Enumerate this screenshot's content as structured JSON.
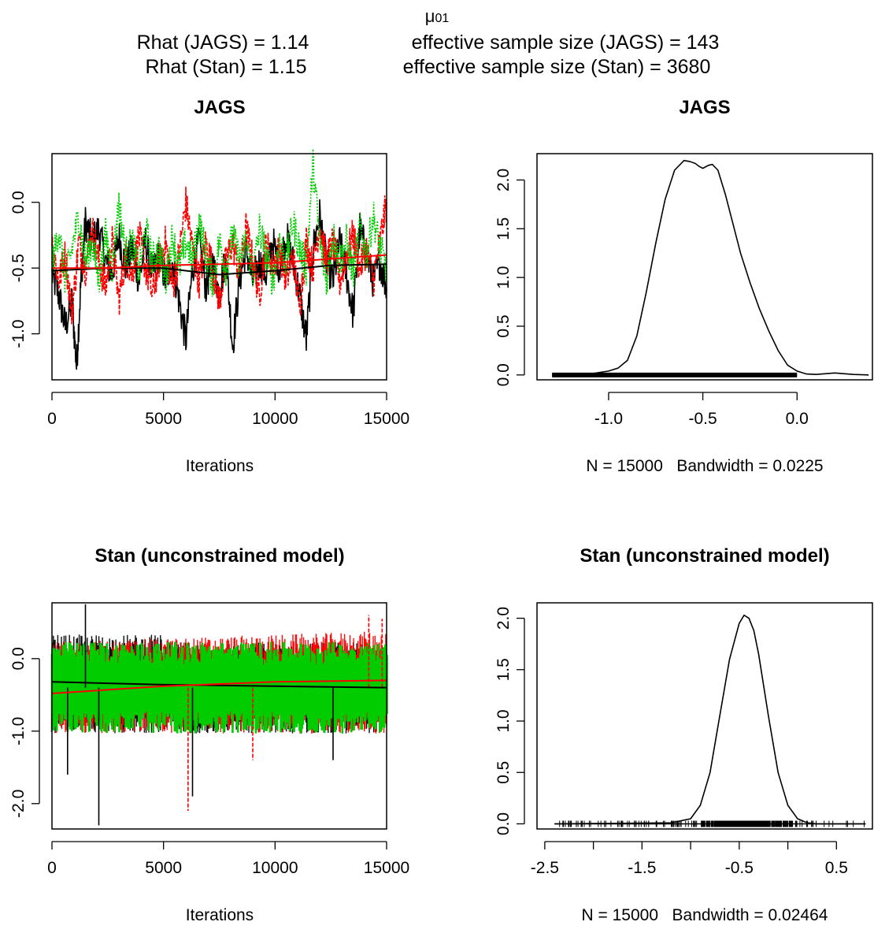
{
  "header": {
    "param_main": "μ",
    "param_sub": "01",
    "line1_left": "Rhat (JAGS) = 1.14",
    "line1_right": "effective sample size (JAGS) =  143",
    "line2_left": "Rhat (Stan) = 1.15",
    "line2_right": "effective sample size (Stan) =  3680"
  },
  "colors": {
    "chain1": "#000000",
    "chain2": "#ff0000",
    "chain3": "#00cc00",
    "axis": "#000000"
  },
  "chart_data": [
    {
      "id": "jags-trace",
      "type": "line",
      "title": "JAGS",
      "xlabel": "Iterations",
      "ylabel": "",
      "xlim": [
        0,
        15000
      ],
      "ylim": [
        -1.35,
        0.37
      ],
      "xticks": [
        0,
        5000,
        10000,
        15000
      ],
      "xtick_labels": [
        "0",
        "5000",
        "10000",
        "15000"
      ],
      "yticks": [
        0,
        -0.5,
        -1.0
      ],
      "ytick_labels": [
        "0.0",
        "-0.5",
        "-1.0"
      ],
      "series": [
        {
          "x": [
            0,
            300,
            600,
            900,
            1100,
            1300,
            1500,
            1800,
            2100,
            2400,
            2700,
            3000,
            3300,
            3600,
            3900,
            4200,
            4500,
            4800,
            5100,
            5400,
            5700,
            6000,
            6300,
            6600,
            6900,
            7200,
            7500,
            7800,
            8100,
            8400,
            8700,
            9000,
            9300,
            9600,
            9900,
            10200,
            10500,
            10800,
            11100,
            11400,
            11700,
            12000,
            12300,
            12600,
            12900,
            13200,
            13500,
            13800,
            14100,
            14400,
            14700,
            15000
          ],
          "y": [
            -0.55,
            -0.7,
            -0.95,
            -0.75,
            -1.25,
            -0.6,
            -0.15,
            -0.3,
            -0.2,
            -0.45,
            -0.55,
            -0.25,
            -0.5,
            -0.35,
            -0.6,
            -0.3,
            -0.55,
            -0.4,
            -0.6,
            -0.45,
            -0.75,
            -1.05,
            -0.5,
            -0.3,
            -0.65,
            -0.45,
            -0.7,
            -0.4,
            -1.1,
            -0.6,
            -0.35,
            -0.6,
            -0.45,
            -0.55,
            -0.3,
            -0.5,
            -0.25,
            -0.45,
            -0.7,
            -1.05,
            -0.35,
            -0.1,
            -0.45,
            -0.6,
            -0.3,
            -0.55,
            -0.85,
            -0.2,
            -0.4,
            -0.6,
            -0.45,
            -0.65
          ]
        },
        {
          "x": [
            0,
            300,
            600,
            900,
            1200,
            1500,
            1800,
            2100,
            2400,
            2700,
            3000,
            3300,
            3600,
            3900,
            4200,
            4500,
            4800,
            5100,
            5400,
            5700,
            6000,
            6300,
            6600,
            6900,
            7200,
            7500,
            7800,
            8100,
            8400,
            8700,
            9000,
            9300,
            9600,
            9900,
            10200,
            10500,
            10800,
            11100,
            11400,
            11700,
            12000,
            12300,
            12600,
            12900,
            13200,
            13500,
            13800,
            14100,
            14400,
            14700,
            15000
          ],
          "y": [
            -0.3,
            -0.6,
            -0.4,
            -0.85,
            -0.3,
            -0.5,
            -0.2,
            -0.45,
            -0.65,
            -0.3,
            -0.75,
            -0.4,
            -0.55,
            -0.25,
            -0.5,
            -0.7,
            -0.45,
            -0.3,
            -0.65,
            -0.4,
            0.0,
            -0.35,
            -0.6,
            -0.3,
            -0.5,
            -0.75,
            -0.45,
            -0.3,
            -0.55,
            -0.2,
            -0.45,
            -0.7,
            -0.3,
            -0.5,
            -0.35,
            -0.6,
            -0.4,
            -0.8,
            -0.3,
            -0.5,
            -0.15,
            -0.45,
            -0.3,
            -0.6,
            -0.4,
            -0.25,
            -0.5,
            -0.35,
            -0.6,
            -0.3,
            0.0
          ]
        },
        {
          "x": [
            0,
            300,
            600,
            900,
            1200,
            1500,
            1800,
            2100,
            2400,
            2700,
            3000,
            3300,
            3600,
            3900,
            4200,
            4500,
            4800,
            5100,
            5400,
            5700,
            6000,
            6300,
            6600,
            6900,
            7200,
            7500,
            7800,
            8100,
            8400,
            8700,
            9000,
            9300,
            9600,
            9900,
            10200,
            10500,
            10800,
            11100,
            11400,
            11700,
            12000,
            12300,
            12600,
            12900,
            13200,
            13500,
            13800,
            14100,
            14400,
            14700,
            15000
          ],
          "y": [
            -0.5,
            -0.2,
            -0.6,
            -0.35,
            -0.1,
            -0.45,
            -0.3,
            -0.6,
            -0.25,
            -0.5,
            0.0,
            -0.4,
            -0.3,
            -0.55,
            -0.2,
            -0.45,
            -0.35,
            -0.6,
            -0.25,
            -0.5,
            -0.3,
            -0.45,
            -0.15,
            -0.4,
            -0.6,
            -0.3,
            -0.5,
            -0.25,
            -0.45,
            -0.3,
            -0.55,
            -0.2,
            -0.4,
            -0.6,
            -0.3,
            -0.45,
            -0.15,
            -0.35,
            -0.5,
            0.3,
            -0.3,
            -0.6,
            -0.25,
            -0.45,
            -0.3,
            -0.55,
            -0.2,
            -0.4,
            -0.1,
            -0.35,
            -0.5
          ]
        }
      ],
      "smooth": [
        {
          "x": [
            0,
            2500,
            5000,
            7500,
            10000,
            12500,
            15000
          ],
          "y": [
            -0.52,
            -0.5,
            -0.5,
            -0.55,
            -0.52,
            -0.48,
            -0.47
          ]
        },
        {
          "x": [
            0,
            2500,
            5000,
            7500,
            10000,
            12500,
            15000
          ],
          "y": [
            -0.5,
            -0.5,
            -0.48,
            -0.47,
            -0.46,
            -0.43,
            -0.4
          ]
        }
      ]
    },
    {
      "id": "jags-density",
      "type": "line",
      "title": "JAGS",
      "xlabel": "N = 15000   Bandwidth = 0.0225",
      "ylabel": "",
      "xlim": [
        -1.38,
        0.4
      ],
      "ylim": [
        -0.05,
        2.27
      ],
      "xticks": [
        -1.0,
        -0.5,
        0.0
      ],
      "xtick_labels": [
        "-1.0",
        "-0.5",
        "0.0"
      ],
      "yticks": [
        0,
        0.5,
        1.0,
        1.5,
        2.0
      ],
      "ytick_labels": [
        "0.0",
        "0.5",
        "1.0",
        "1.5",
        "2.0"
      ],
      "x": [
        -1.3,
        -1.1,
        -1.0,
        -0.95,
        -0.9,
        -0.85,
        -0.8,
        -0.75,
        -0.7,
        -0.65,
        -0.6,
        -0.57,
        -0.54,
        -0.52,
        -0.5,
        -0.47,
        -0.45,
        -0.42,
        -0.38,
        -0.34,
        -0.3,
        -0.25,
        -0.2,
        -0.15,
        -0.1,
        -0.05,
        0.0,
        0.05,
        0.1,
        0.2,
        0.3,
        0.38
      ],
      "y": [
        0.0,
        0.01,
        0.04,
        0.07,
        0.15,
        0.4,
        0.85,
        1.35,
        1.8,
        2.1,
        2.2,
        2.19,
        2.17,
        2.14,
        2.12,
        2.15,
        2.16,
        2.1,
        1.85,
        1.55,
        1.25,
        0.95,
        0.68,
        0.45,
        0.25,
        0.1,
        0.04,
        0.01,
        0.005,
        0.02,
        0.005,
        0.0
      ],
      "rug_range": [
        -1.3,
        0.0
      ]
    },
    {
      "id": "stan-trace",
      "type": "line",
      "title": "Stan (unconstrained model)",
      "xlabel": "Iterations",
      "ylabel": "",
      "xlim": [
        0,
        15000
      ],
      "ylim": [
        -2.35,
        0.77
      ],
      "xticks": [
        0,
        5000,
        10000,
        15000
      ],
      "xtick_labels": [
        "0",
        "5000",
        "10000",
        "15000"
      ],
      "yticks": [
        0,
        -1.0,
        -2.0
      ],
      "ytick_labels": [
        "0.0",
        "-1.0",
        "-2.0"
      ],
      "band_center": -0.4,
      "band_half_width": 0.55,
      "spikes": [
        {
          "x": 1500,
          "y": 0.75,
          "chain": 0
        },
        {
          "x": 2100,
          "y": -2.3,
          "chain": 0
        },
        {
          "x": 6100,
          "y": -2.1,
          "chain": 1
        },
        {
          "x": 6300,
          "y": -1.9,
          "chain": 0
        },
        {
          "x": 700,
          "y": -1.6,
          "chain": 0
        },
        {
          "x": 9000,
          "y": -1.4,
          "chain": 1
        },
        {
          "x": 12600,
          "y": -1.4,
          "chain": 0
        },
        {
          "x": 14200,
          "y": 0.6,
          "chain": 1
        },
        {
          "x": 14800,
          "y": 0.55,
          "chain": 1
        }
      ],
      "smooth": [
        {
          "x": [
            0,
            5000,
            10000,
            15000
          ],
          "y": [
            -0.32,
            -0.36,
            -0.38,
            -0.4
          ]
        },
        {
          "x": [
            0,
            5000,
            10000,
            15000
          ],
          "y": [
            -0.48,
            -0.38,
            -0.32,
            -0.3
          ]
        }
      ]
    },
    {
      "id": "stan-density",
      "type": "line",
      "title": "Stan (unconstrained model)",
      "xlabel": "N = 15000   Bandwidth = 0.02464",
      "ylabel": "",
      "xlim": [
        -2.58,
        0.87
      ],
      "ylim": [
        -0.05,
        2.15
      ],
      "xticks": [
        -2.5,
        -1.5,
        -0.5,
        0.5
      ],
      "xtick_labels": [
        "-2.5",
        "-1.5",
        "-0.5",
        "0.5"
      ],
      "minor_xticks": [
        -2.0,
        -1.0,
        0.0
      ],
      "yticks": [
        0,
        0.5,
        1.0,
        1.5,
        2.0
      ],
      "ytick_labels": [
        "0.0",
        "0.5",
        "1.0",
        "1.5",
        "2.0"
      ],
      "x": [
        -2.4,
        -1.2,
        -1.0,
        -0.9,
        -0.8,
        -0.7,
        -0.6,
        -0.5,
        -0.45,
        -0.4,
        -0.35,
        -0.3,
        -0.2,
        -0.1,
        0.0,
        0.1,
        0.2,
        0.3,
        0.8
      ],
      "y": [
        0.0,
        0.01,
        0.05,
        0.18,
        0.5,
        1.05,
        1.6,
        1.95,
        2.03,
        2.0,
        1.88,
        1.65,
        1.05,
        0.5,
        0.18,
        0.05,
        0.01,
        0.0,
        0.0
      ],
      "rug_range": [
        -2.4,
        0.8
      ]
    }
  ]
}
